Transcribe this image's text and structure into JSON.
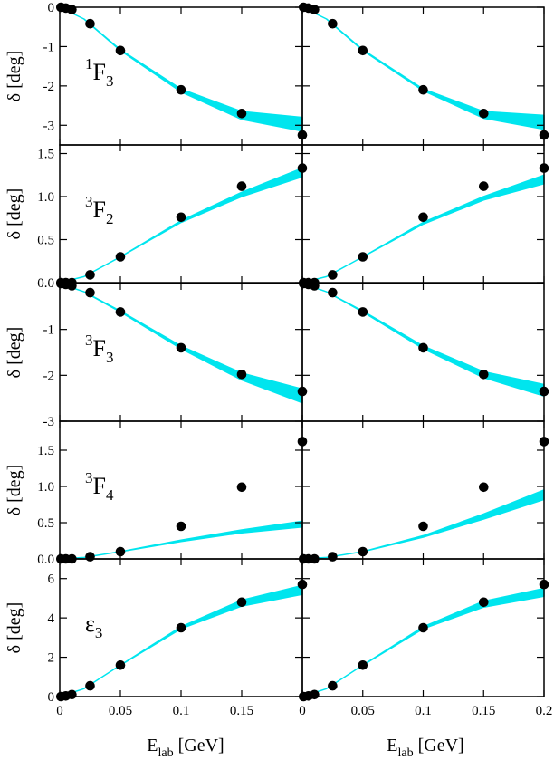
{
  "colors": {
    "band": "#00e5ee",
    "points": "#000000",
    "frame": "#000000"
  },
  "chart_data": {
    "type": "scatter",
    "grid": false,
    "layout": "5 rows x 2 columns panel grid",
    "x_title": {
      "main": "E",
      "sub": "lab",
      "unit": "[GeV]"
    },
    "y_title": {
      "main": "δ",
      "unit": "[deg]"
    },
    "x_range": [
      0,
      0.2
    ],
    "x_ticks": {
      "left": [
        "0",
        "0.05",
        "0.1",
        "0.15"
      ],
      "right": [
        "0",
        "0.05",
        "0.1",
        "0.15",
        "0.2"
      ]
    },
    "x_tick_values": {
      "left": [
        0,
        0.05,
        0.1,
        0.15
      ],
      "right": [
        0,
        0.05,
        0.1,
        0.15,
        0.2
      ]
    },
    "panels": [
      {
        "label": {
          "sup": "1",
          "main": "F",
          "sub": "3"
        },
        "ylim": [
          -3.5,
          0
        ],
        "y_ticks": [
          "0",
          "-1",
          "-2",
          "-3"
        ],
        "y_tick_values": [
          0,
          -1,
          -2,
          -3
        ],
        "points_x": [
          0.001,
          0.005,
          0.01,
          0.025,
          0.05,
          0.1,
          0.15,
          0.2
        ],
        "points_y": [
          0.0,
          -0.02,
          -0.06,
          -0.42,
          -1.1,
          -2.1,
          -2.7,
          -3.25
        ],
        "left_band": {
          "x": [
            0,
            0.02,
            0.05,
            0.1,
            0.15,
            0.2
          ],
          "lower": [
            0,
            -0.3,
            -1.1,
            -2.15,
            -2.85,
            -3.15
          ],
          "upper": [
            0,
            -0.3,
            -1.08,
            -2.08,
            -2.65,
            -2.8
          ]
        },
        "right_band": {
          "x": [
            0,
            0.02,
            0.05,
            0.1,
            0.15,
            0.2
          ],
          "lower": [
            0,
            -0.3,
            -1.1,
            -2.12,
            -2.82,
            -3.1
          ],
          "upper": [
            0,
            -0.3,
            -1.08,
            -2.08,
            -2.65,
            -2.75
          ]
        }
      },
      {
        "label": {
          "sup": "3",
          "main": "F",
          "sub": "2"
        },
        "ylim": [
          0,
          1.6
        ],
        "y_ticks": [
          "0.0",
          "0.5",
          "1.0",
          "1.5"
        ],
        "y_tick_values": [
          0,
          0.5,
          1.0,
          1.5
        ],
        "points_x": [
          0.001,
          0.005,
          0.01,
          0.025,
          0.05,
          0.1,
          0.15,
          0.2
        ],
        "points_y": [
          0.0,
          0.0,
          0.0,
          0.09,
          0.3,
          0.76,
          1.12,
          1.33
        ],
        "left_band": {
          "x": [
            0,
            0.02,
            0.05,
            0.1,
            0.15,
            0.2
          ],
          "lower": [
            0,
            0.07,
            0.3,
            0.7,
            1.0,
            1.23
          ],
          "upper": [
            0,
            0.07,
            0.3,
            0.72,
            1.05,
            1.33
          ]
        },
        "right_band": {
          "x": [
            0,
            0.02,
            0.05,
            0.1,
            0.15,
            0.2
          ],
          "lower": [
            0,
            0.07,
            0.3,
            0.68,
            0.96,
            1.15
          ],
          "upper": [
            0,
            0.07,
            0.3,
            0.7,
            1.0,
            1.25
          ]
        }
      },
      {
        "label": {
          "sup": "3",
          "main": "F",
          "sub": "3"
        },
        "ylim": [
          -3,
          0
        ],
        "y_ticks": [
          "-1",
          "-2",
          "-3"
        ],
        "y_tick_values": [
          -1,
          -2,
          -3
        ],
        "points_x": [
          0.001,
          0.005,
          0.01,
          0.025,
          0.05,
          0.1,
          0.15,
          0.2
        ],
        "points_y": [
          0.0,
          -0.02,
          -0.05,
          -0.2,
          -0.62,
          -1.4,
          -1.98,
          -2.35
        ],
        "left_band": {
          "x": [
            0,
            0.02,
            0.05,
            0.1,
            0.15,
            0.2
          ],
          "lower": [
            0,
            -0.18,
            -0.62,
            -1.42,
            -2.1,
            -2.6
          ],
          "upper": [
            0,
            -0.18,
            -0.6,
            -1.36,
            -1.95,
            -2.3
          ]
        },
        "right_band": {
          "x": [
            0,
            0.02,
            0.05,
            0.1,
            0.15,
            0.2
          ],
          "lower": [
            0,
            -0.18,
            -0.62,
            -1.42,
            -2.05,
            -2.45
          ],
          "upper": [
            0,
            -0.18,
            -0.6,
            -1.36,
            -1.92,
            -2.2
          ]
        }
      },
      {
        "label": {
          "sup": "3",
          "main": "F",
          "sub": "4"
        },
        "ylim": [
          0,
          1.9
        ],
        "y_ticks": [
          "0.0",
          "0.5",
          "1.0",
          "1.5"
        ],
        "y_tick_values": [
          0,
          0.5,
          1.0,
          1.5
        ],
        "points_x": [
          0.001,
          0.005,
          0.01,
          0.025,
          0.05,
          0.1,
          0.15,
          0.2
        ],
        "points_y": [
          0.0,
          0.0,
          0.0,
          0.03,
          0.1,
          0.45,
          0.99,
          1.62
        ],
        "left_band": {
          "x": [
            0,
            0.02,
            0.05,
            0.1,
            0.15,
            0.2
          ],
          "lower": [
            0,
            0.02,
            0.1,
            0.24,
            0.36,
            0.44
          ],
          "upper": [
            0,
            0.02,
            0.1,
            0.26,
            0.4,
            0.52
          ]
        },
        "right_band": {
          "x": [
            0,
            0.02,
            0.05,
            0.1,
            0.15,
            0.2
          ],
          "lower": [
            0,
            0.02,
            0.1,
            0.3,
            0.55,
            0.82
          ],
          "upper": [
            0,
            0.02,
            0.1,
            0.32,
            0.62,
            0.95
          ]
        }
      },
      {
        "label": {
          "sup": "",
          "main": "ε",
          "sub": "3"
        },
        "ylim": [
          0,
          7
        ],
        "y_ticks": [
          "0",
          "2",
          "4",
          "6"
        ],
        "y_tick_values": [
          0,
          2,
          4,
          6
        ],
        "points_x": [
          0.001,
          0.005,
          0.01,
          0.025,
          0.05,
          0.1,
          0.15,
          0.2
        ],
        "points_y": [
          0.0,
          0.03,
          0.1,
          0.55,
          1.6,
          3.5,
          4.8,
          5.7
        ],
        "left_band": {
          "x": [
            0,
            0.02,
            0.05,
            0.1,
            0.15,
            0.2
          ],
          "lower": [
            0,
            0.4,
            1.6,
            3.45,
            4.6,
            5.2
          ],
          "upper": [
            0,
            0.4,
            1.6,
            3.55,
            4.9,
            5.65
          ]
        },
        "right_band": {
          "x": [
            0,
            0.02,
            0.05,
            0.1,
            0.15,
            0.2
          ],
          "lower": [
            0,
            0.4,
            1.6,
            3.45,
            4.55,
            5.1
          ],
          "upper": [
            0,
            0.4,
            1.6,
            3.55,
            4.85,
            5.5
          ]
        }
      }
    ]
  }
}
